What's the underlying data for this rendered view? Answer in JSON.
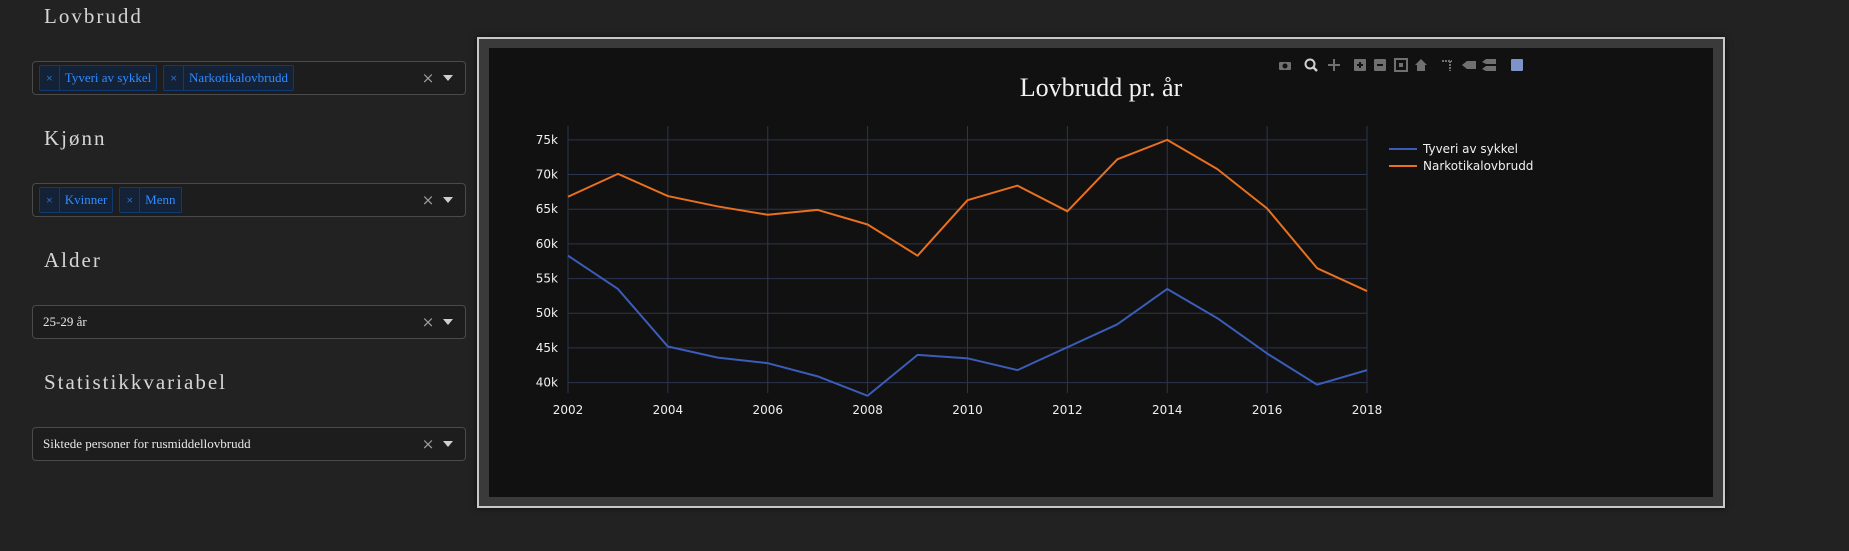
{
  "filters": {
    "lovbrudd": {
      "title": "Lovbrudd",
      "chips": [
        "Tyveri av sykkel",
        "Narkotikalovbrudd"
      ]
    },
    "kjonn": {
      "title": "Kjønn",
      "chips": [
        "Kvinner",
        "Menn"
      ]
    },
    "alder": {
      "title": "Alder",
      "value": "25-29 år"
    },
    "statistikkvariabel": {
      "title": "Statistikkvariabel",
      "value": "Siktede personer for rusmiddellovbrudd"
    },
    "chip_remove_glyph": "×",
    "clear_glyph": "×"
  },
  "modebar": {
    "icons": [
      "camera-icon",
      "zoom-icon",
      "pan-icon",
      "zoom-in-icon",
      "zoom-out-icon",
      "autoscale-icon",
      "home-icon",
      "spike-lines-icon",
      "hover-closest-icon",
      "hover-compare-icon",
      "plotly-logo-icon"
    ]
  },
  "colors": {
    "series1": "#3b5cb8",
    "series2": "#e8701f",
    "plot_bg": "#111111",
    "grid": "#2c3550",
    "chip_text": "#2f8cff"
  },
  "chart_data": {
    "type": "line",
    "title": "Lovbrudd pr. år",
    "x": [
      2002,
      2003,
      2004,
      2005,
      2006,
      2007,
      2008,
      2009,
      2010,
      2011,
      2012,
      2013,
      2014,
      2015,
      2016,
      2017,
      2018
    ],
    "series": [
      {
        "name": "Tyveri av sykkel",
        "values": [
          58300,
          53500,
          45200,
          43600,
          42800,
          40900,
          38100,
          44000,
          43500,
          41800,
          45100,
          48400,
          53500,
          49300,
          44200,
          39700,
          41800
        ]
      },
      {
        "name": "Narkotikalovbrudd",
        "values": [
          66800,
          70100,
          66900,
          65400,
          64200,
          64900,
          62800,
          58300,
          66300,
          68400,
          64700,
          72200,
          75000,
          70800,
          65100,
          56500,
          53200
        ]
      }
    ],
    "xlim": [
      2002,
      2018
    ],
    "ylim": [
      38500,
      77000
    ],
    "x_ticks": [
      "2002",
      "2004",
      "2006",
      "2008",
      "2010",
      "2012",
      "2014",
      "2016",
      "2018"
    ],
    "x_tick_values": [
      2002,
      2004,
      2006,
      2008,
      2010,
      2012,
      2014,
      2016,
      2018
    ],
    "y_ticks": [
      "40k",
      "45k",
      "50k",
      "55k",
      "60k",
      "65k",
      "70k",
      "75k"
    ],
    "y_tick_values": [
      40000,
      45000,
      50000,
      55000,
      60000,
      65000,
      70000,
      75000
    ],
    "grid": true,
    "legend_position": "top-right"
  }
}
